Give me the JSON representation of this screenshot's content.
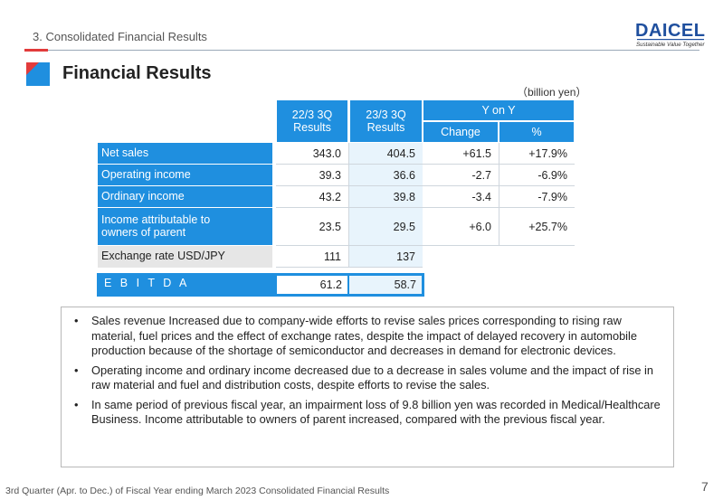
{
  "header": {
    "section": "3. Consolidated Financial Results",
    "title": "Financial Results",
    "logo_text": "DAICEL",
    "logo_tagline": "Sustainable Value Together"
  },
  "table": {
    "unit": "（billion yen）",
    "col1": "22/3 3Q\nResults",
    "col2": "23/3 3Q\nResults",
    "yoy": "Y on Y",
    "change": "Change",
    "pct": "%",
    "rows": [
      {
        "label": "Net sales",
        "v1": "343.0",
        "v2": "404.5",
        "chg": "+61.5",
        "pct": "+17.9%"
      },
      {
        "label": "Operating income",
        "v1": "39.3",
        "v2": "36.6",
        "chg": "-2.7",
        "pct": "-6.9%"
      },
      {
        "label": "Ordinary income",
        "v1": "43.2",
        "v2": "39.8",
        "chg": "-3.4",
        "pct": "-7.9%"
      },
      {
        "label": "Income attributable to\nowners of parent",
        "v1": "23.5",
        "v2": "29.5",
        "chg": "+6.0",
        "pct": "+25.7%"
      }
    ],
    "exchange": {
      "label": "Exchange rate  USD/JPY",
      "v1": "111",
      "v2": "137"
    },
    "ebitda": {
      "label": "E B I T D A",
      "v1": "61.2",
      "v2": "58.7"
    }
  },
  "bullets": [
    "Sales revenue Increased due to company-wide efforts to revise sales prices corresponding to rising raw material, fuel prices and the effect of exchange rates, despite the impact of delayed recovery in automobile production because of the shortage of semiconductor and decreases in demand for electronic devices.",
    "Operating income and ordinary income decreased due to a decrease in sales volume and the impact of rise in raw material and fuel and distribution costs, despite efforts to revise the sales.",
    "In same period of previous fiscal year, an impairment loss of 9.8 billion yen was recorded in Medical/Healthcare Business. Income attributable to owners of parent increased, compared with the previous fiscal year."
  ],
  "footer": {
    "text": "3rd Quarter (Apr. to Dec.) of Fiscal Year ending March 2023 Consolidated Financial Results",
    "page": "7"
  },
  "colors": {
    "accent": "#1f8fdf",
    "red": "#e23b3b",
    "light": "#e8f4fc",
    "grey": "#e6e6e6"
  }
}
